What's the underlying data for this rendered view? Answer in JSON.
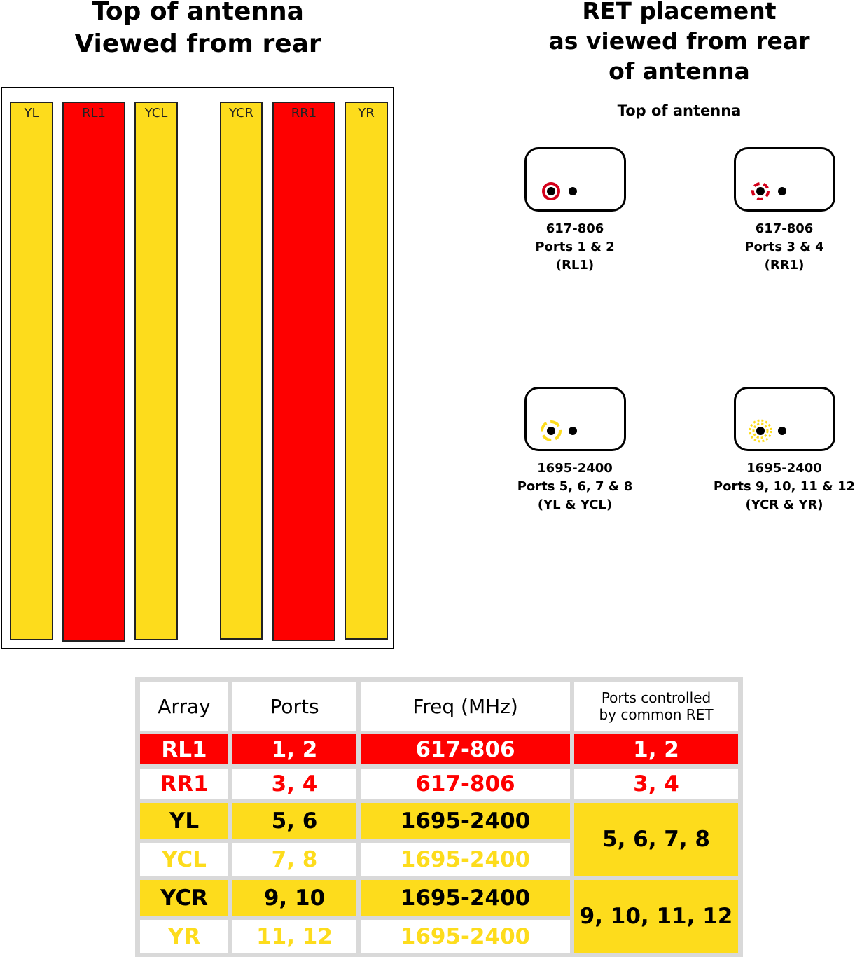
{
  "left_title": "Top of antenna\nViewed from rear",
  "right_title": "RET placement\nas viewed from rear\nof antenna",
  "right_subtitle": "Top of antenna",
  "colors": {
    "red": "#fe0000",
    "yellow": "#fddc1c",
    "white": "#ffffff",
    "black": "#000000",
    "grid": "#d9d9d9"
  },
  "columns": [
    {
      "label": "YL",
      "color": "#fddc1c"
    },
    {
      "label": "RL1",
      "color": "#fe0000"
    },
    {
      "label": "YCL",
      "color": "#fddc1c"
    },
    {
      "label": "YCR",
      "color": "#fddc1c"
    },
    {
      "label": "RR1",
      "color": "#fe0000"
    },
    {
      "label": "YR",
      "color": "#fddc1c"
    }
  ],
  "rets": [
    {
      "line1": "617-806",
      "line2": "Ports 1 & 2",
      "line3": "(RL1)",
      "ring": "solid-red"
    },
    {
      "line1": "617-806",
      "line2": "Ports 3 & 4",
      "line3": "(RR1)",
      "ring": "dashed-red"
    },
    {
      "line1": "1695-2400",
      "line2": "Ports 5, 6, 7 & 8",
      "line3": "(YL & YCL)",
      "ring": "dashed-yellow"
    },
    {
      "line1": "1695-2400",
      "line2": "Ports 9, 10, 11 & 12",
      "line3": "(YCR & YR)",
      "ring": "dotted-yellow"
    }
  ],
  "table": {
    "headers": {
      "array": "Array",
      "ports": "Ports",
      "freq": "Freq (MHz)",
      "common": "Ports controlled\nby common RET"
    },
    "rows": [
      {
        "array": "RL1",
        "ports": "1, 2",
        "freq": "617-806",
        "style": "red-fill"
      },
      {
        "array": "RR1",
        "ports": "3, 4",
        "freq": "617-806",
        "style": "red-text"
      },
      {
        "array": "YL",
        "ports": "5, 6",
        "freq": "1695-2400",
        "style": "yellow-fill"
      },
      {
        "array": "YCL",
        "ports": "7, 8",
        "freq": "1695-2400",
        "style": "yellow-text"
      },
      {
        "array": "YCR",
        "ports": "9, 10",
        "freq": "1695-2400",
        "style": "yellow-fill"
      },
      {
        "array": "YR",
        "ports": "11, 12",
        "freq": "1695-2400",
        "style": "yellow-text"
      }
    ],
    "common": [
      "1, 2",
      "3, 4",
      "5, 6, 7, 8",
      "9, 10, 11, 12"
    ]
  }
}
